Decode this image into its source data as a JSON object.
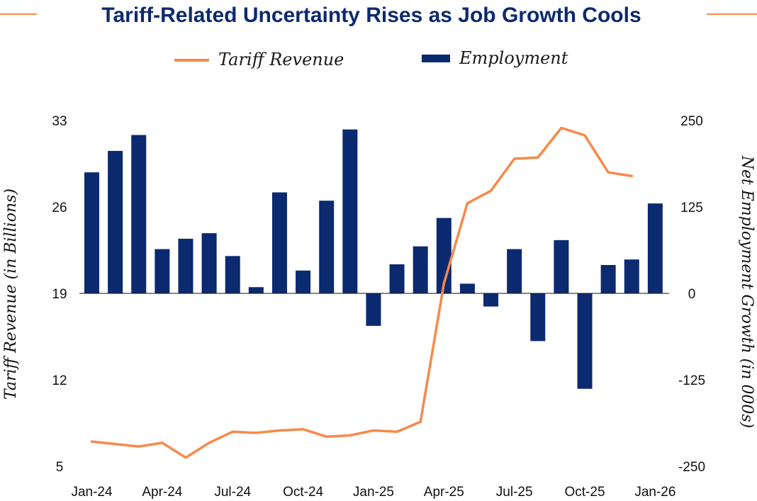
{
  "chart_data": {
    "type": "bar+line",
    "title": "Tariff-Related Uncertainty Rises as Job Growth Cools",
    "colors": {
      "line": "#f7894a",
      "bar": "#0b2a6f",
      "title": "#0b2a6f"
    },
    "months": [
      "Jan-24",
      "Feb-24",
      "Mar-24",
      "Apr-24",
      "May-24",
      "Jun-24",
      "Jul-24",
      "Aug-24",
      "Sep-24",
      "Oct-24",
      "Nov-24",
      "Dec-24",
      "Jan-25",
      "Feb-25",
      "Mar-25",
      "Apr-25",
      "May-25",
      "Jun-25",
      "Jul-25",
      "Aug-25",
      "Sep-25",
      "Oct-25",
      "Nov-25",
      "Dec-25",
      "Jan-26"
    ],
    "x_tick_labels": [
      "Jan-24",
      "Apr-24",
      "Jul-24",
      "Oct-24",
      "Jan-25",
      "Apr-25",
      "Jul-25",
      "Oct-25",
      "Jan-26"
    ],
    "x_tick_indices": [
      0,
      3,
      6,
      9,
      12,
      15,
      18,
      21,
      24
    ],
    "series": [
      {
        "name": "Tariff Revenue",
        "kind": "line",
        "axis": "left",
        "values": [
          7.0,
          6.8,
          6.6,
          6.9,
          5.7,
          6.9,
          7.8,
          7.7,
          7.9,
          8.0,
          7.4,
          7.5,
          7.9,
          7.8,
          8.6,
          19.8,
          26.3,
          27.3,
          29.9,
          30.0,
          32.4,
          31.8,
          28.8,
          28.5,
          null
        ]
      },
      {
        "name": "Employment",
        "kind": "bar",
        "axis": "right",
        "values": [
          175,
          206,
          229,
          64,
          79,
          87,
          54,
          9,
          146,
          33,
          134,
          237,
          -47,
          42,
          68,
          109,
          14,
          -19,
          64,
          -69,
          77,
          -138,
          41,
          49,
          130
        ]
      }
    ],
    "left_axis": {
      "title": "Tariff Revenue (in Billions)",
      "ticks": [
        "5",
        "12",
        "19",
        "26",
        "33"
      ],
      "range": [
        5,
        33
      ]
    },
    "right_axis": {
      "title": "Net Employment Growth (in 000s)",
      "ticks": [
        "-250",
        "-125",
        "0",
        "125",
        "250"
      ],
      "range": [
        -250,
        250
      ]
    },
    "legend": [
      {
        "label": "Tariff Revenue",
        "kind": "line"
      },
      {
        "label": "Employment",
        "kind": "bar"
      }
    ]
  }
}
